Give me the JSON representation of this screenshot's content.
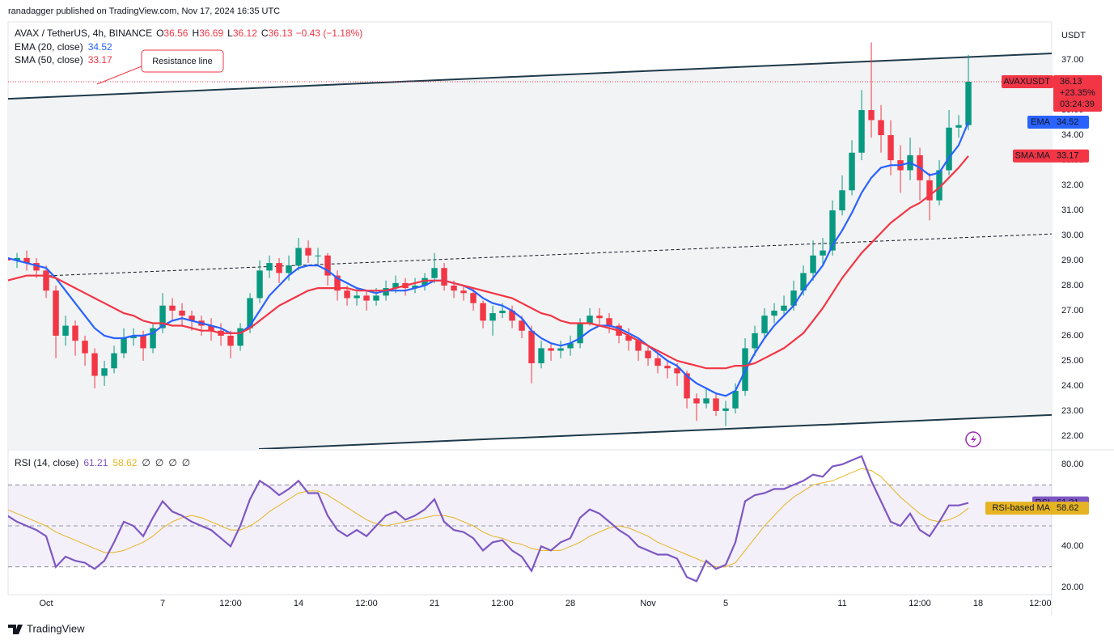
{
  "header": {
    "published": "ranadagger published on TradingView.com, Nov 17, 2024 16:35 UTC",
    "footer": "TradingView"
  },
  "chart_data": {
    "type": "candlestick",
    "title": "AVAX / TetherUS, 4h, BINANCE",
    "currency": "USDT",
    "up_color": "#089981",
    "down_color": "#f23645",
    "legend_ohlc": [
      {
        "label": "O",
        "value": 36.56
      },
      {
        "label": "H",
        "value": 36.69
      },
      {
        "label": "L",
        "value": 36.12
      },
      {
        "label": "C",
        "value": 36.13
      }
    ],
    "change": "−0.43 (−1.18%)",
    "price_tag": "AVAXUSDT",
    "change_pct": "+23.35%",
    "countdown": "03:24:39",
    "xlim": [
      -1.96,
      51.79
    ],
    "xticks": [
      {
        "value": 0,
        "label": "Oct"
      },
      {
        "value": 6,
        "label": "7"
      },
      {
        "value": 9.5,
        "label": "12:00"
      },
      {
        "value": 13,
        "label": "14"
      },
      {
        "value": 16.5,
        "label": "12:00"
      },
      {
        "value": 20,
        "label": "21"
      },
      {
        "value": 23.5,
        "label": "12:00"
      },
      {
        "value": 27,
        "label": "28"
      },
      {
        "value": 31,
        "label": "Nov"
      },
      {
        "value": 35,
        "label": "5"
      },
      {
        "value": 41,
        "label": "11"
      },
      {
        "value": 45,
        "label": "12:00"
      },
      {
        "value": 48,
        "label": "18"
      },
      {
        "value": 51.2,
        "label": "12:00"
      }
    ],
    "ylim": [
      21.48,
      38.52
    ],
    "yticks": [
      {
        "value": 22,
        "label": "22.00"
      },
      {
        "value": 23,
        "label": "23.00"
      },
      {
        "value": 24,
        "label": "24.00"
      },
      {
        "value": 25,
        "label": "25.00"
      },
      {
        "value": 26,
        "label": "26.00"
      },
      {
        "value": 27,
        "label": "27.00"
      },
      {
        "value": 28,
        "label": "28.00"
      },
      {
        "value": 29,
        "label": "29.00"
      },
      {
        "value": 30,
        "label": "30.00"
      },
      {
        "value": 31,
        "label": "31.00"
      },
      {
        "value": 32,
        "label": "32.00"
      },
      {
        "value": 33,
        "label": "33.00"
      },
      {
        "value": 34,
        "label": "34.00"
      },
      {
        "value": 35,
        "label": "35.00"
      },
      {
        "value": 36,
        "label": "36.00"
      },
      {
        "value": 37,
        "label": "37.00"
      }
    ],
    "x": [
      -2,
      -1.5,
      -1,
      -0.5,
      0,
      0.5,
      1,
      1.5,
      2,
      2.5,
      3,
      3.5,
      4,
      4.5,
      5,
      5.5,
      6,
      6.5,
      7,
      7.5,
      8,
      8.5,
      9,
      9.5,
      10,
      10.5,
      11,
      11.5,
      12,
      12.5,
      13,
      13.5,
      14,
      14.5,
      15,
      15.5,
      16,
      16.5,
      17,
      17.5,
      18,
      18.5,
      19,
      19.5,
      20,
      20.5,
      21,
      21.5,
      22,
      22.5,
      23,
      23.5,
      24,
      24.5,
      25,
      25.5,
      26,
      26.5,
      27,
      27.5,
      28,
      28.5,
      29,
      29.5,
      30,
      30.5,
      31,
      31.5,
      32,
      32.5,
      33,
      33.5,
      34,
      34.5,
      35,
      35.5,
      36,
      36.5,
      37,
      37.5,
      38,
      38.5,
      39,
      39.5,
      40,
      40.5,
      41,
      41.5,
      42,
      42.5,
      43,
      43.5,
      44,
      44.5,
      45,
      45.5,
      46,
      46.5,
      47,
      47.5
    ],
    "open": [
      29.1,
      29.0,
      29.1,
      28.9,
      28.6,
      27.8,
      26.0,
      26.4,
      25.8,
      25.3,
      24.4,
      24.7,
      25.3,
      25.9,
      26.0,
      25.5,
      26.3,
      27.2,
      27.0,
      26.8,
      26.6,
      26.4,
      26.2,
      26.0,
      25.6,
      26.3,
      27.5,
      28.6,
      28.9,
      28.5,
      28.8,
      29.5,
      29.2,
      29.2,
      28.4,
      27.8,
      27.5,
      27.6,
      27.4,
      27.6,
      27.9,
      28.1,
      27.9,
      28.0,
      28.3,
      28.7,
      28.0,
      27.8,
      27.7,
      27.3,
      26.6,
      26.9,
      27.0,
      26.6,
      26.2,
      24.9,
      25.5,
      25.4,
      25.5,
      25.7,
      26.5,
      26.8,
      26.7,
      26.4,
      26.0,
      25.8,
      25.4,
      25.1,
      24.8,
      24.7,
      24.5,
      23.5,
      23.3,
      23.5,
      23.0,
      23.1,
      23.8,
      25.5,
      26.1,
      26.8,
      27.0,
      27.2,
      27.8,
      28.5,
      29.2,
      29.4,
      31.0,
      31.8,
      33.3,
      35.0,
      34.6,
      34.0,
      33.0,
      32.6,
      33.2,
      32.2,
      31.4,
      32.6,
      34.3,
      34.4
    ],
    "high": [
      29.4,
      29.3,
      29.4,
      29.1,
      28.8,
      28.0,
      26.8,
      26.6,
      26.0,
      25.5,
      25.0,
      25.6,
      26.3,
      26.3,
      26.2,
      26.5,
      27.7,
      27.5,
      27.3,
      27.0,
      26.8,
      26.7,
      26.5,
      26.2,
      26.5,
      27.7,
      29.0,
      29.2,
      29.1,
      29.2,
      29.9,
      29.8,
      29.5,
      29.3,
      28.6,
      28.0,
      27.9,
      27.8,
      27.9,
      28.2,
      28.4,
      28.3,
      28.3,
      28.5,
      29.3,
      28.9,
      28.2,
      28.0,
      27.9,
      27.4,
      27.2,
      27.3,
      27.2,
      26.8,
      26.4,
      25.8,
      25.7,
      25.8,
      26.0,
      26.7,
      27.1,
      27.1,
      26.9,
      26.5,
      26.3,
      25.9,
      25.6,
      25.3,
      25.0,
      24.9,
      24.6,
      23.7,
      23.9,
      23.7,
      23.4,
      24.1,
      25.9,
      26.4,
      27.1,
      27.3,
      27.6,
      28.2,
      28.8,
      29.8,
      29.9,
      31.4,
      32.4,
      33.8,
      35.8,
      37.7,
      35.2,
      34.6,
      33.6,
      33.9,
      33.5,
      32.5,
      33.0,
      35.0,
      34.8,
      37.2
    ],
    "low": [
      28.8,
      28.7,
      28.6,
      28.3,
      27.5,
      25.1,
      25.6,
      25.2,
      24.8,
      23.9,
      24.0,
      24.5,
      25.1,
      25.6,
      25.0,
      25.3,
      26.1,
      26.6,
      26.4,
      26.2,
      26.0,
      25.8,
      25.6,
      25.1,
      25.4,
      26.1,
      27.3,
      28.3,
      28.1,
      28.2,
      28.6,
      28.9,
      28.8,
      28.0,
      27.4,
      27.2,
      27.2,
      27.0,
      27.2,
      27.4,
      27.7,
      27.6,
      27.7,
      27.8,
      28.1,
      27.8,
      27.5,
      27.4,
      27.0,
      26.3,
      26.0,
      26.7,
      26.3,
      25.9,
      24.1,
      24.7,
      25.0,
      25.1,
      25.2,
      25.5,
      26.4,
      26.4,
      26.1,
      25.7,
      25.4,
      25.0,
      24.8,
      24.5,
      24.3,
      24.0,
      23.1,
      22.6,
      23.1,
      22.8,
      22.4,
      22.9,
      23.6,
      25.2,
      25.9,
      26.5,
      26.8,
      27.0,
      27.6,
      28.2,
      28.8,
      29.2,
      30.8,
      31.6,
      33.0,
      33.9,
      33.3,
      32.4,
      31.7,
      32.2,
      31.4,
      30.6,
      31.2,
      32.4,
      33.9,
      34.2
    ],
    "close": [
      29.0,
      29.1,
      28.9,
      28.6,
      27.8,
      26.0,
      26.4,
      25.8,
      25.3,
      24.4,
      24.7,
      25.3,
      25.9,
      26.0,
      25.5,
      26.3,
      27.2,
      27.0,
      26.8,
      26.6,
      26.4,
      26.2,
      26.0,
      25.6,
      26.3,
      27.5,
      28.6,
      28.9,
      28.5,
      28.8,
      29.5,
      29.2,
      29.2,
      28.4,
      27.8,
      27.5,
      27.6,
      27.4,
      27.6,
      27.9,
      28.1,
      27.9,
      28.0,
      28.3,
      28.7,
      28.0,
      27.8,
      27.7,
      27.3,
      26.6,
      26.9,
      27.0,
      26.6,
      26.2,
      24.9,
      25.5,
      25.4,
      25.5,
      25.7,
      26.5,
      26.8,
      26.7,
      26.4,
      26.0,
      25.8,
      25.4,
      25.1,
      24.8,
      24.7,
      24.5,
      23.5,
      23.3,
      23.5,
      23.0,
      23.1,
      23.8,
      25.5,
      26.1,
      26.8,
      27.0,
      27.2,
      27.8,
      28.5,
      29.2,
      29.4,
      31.0,
      31.8,
      33.3,
      35.0,
      34.6,
      34.0,
      33.0,
      32.6,
      33.2,
      32.2,
      31.4,
      32.6,
      34.3,
      34.4,
      36.13
    ],
    "overlays": [
      {
        "name": "EMA (20, close)",
        "tag": "EMA",
        "color": "#2962ff",
        "values": [
          29.1,
          29.0,
          28.9,
          28.8,
          28.7,
          28.3,
          27.8,
          27.3,
          26.8,
          26.3,
          26.0,
          25.9,
          25.9,
          26.0,
          26.0,
          26.1,
          26.4,
          26.6,
          26.7,
          26.6,
          26.5,
          26.4,
          26.3,
          26.1,
          26.1,
          26.4,
          27.0,
          27.6,
          28.0,
          28.4,
          28.7,
          28.8,
          28.8,
          28.6,
          28.3,
          28.1,
          27.9,
          27.8,
          27.7,
          27.8,
          27.8,
          27.8,
          27.9,
          28.0,
          28.2,
          28.2,
          28.1,
          28.0,
          27.8,
          27.5,
          27.3,
          27.2,
          27.0,
          26.7,
          26.2,
          25.9,
          25.7,
          25.6,
          25.7,
          25.9,
          26.2,
          26.4,
          26.4,
          26.3,
          26.1,
          25.9,
          25.6,
          25.3,
          25.0,
          24.8,
          24.4,
          24.1,
          23.9,
          23.7,
          23.6,
          23.8,
          24.6,
          25.3,
          25.9,
          26.4,
          26.8,
          27.2,
          27.8,
          28.3,
          28.8,
          29.6,
          30.2,
          30.9,
          31.7,
          32.3,
          32.7,
          32.8,
          32.8,
          32.9,
          32.7,
          32.4,
          32.5,
          33.1,
          33.6,
          34.52
        ]
      },
      {
        "name": "SMA (50, close)",
        "tag": "SMA:MA",
        "color": "#f23645",
        "values": [
          28.2,
          28.3,
          28.4,
          28.4,
          28.4,
          28.3,
          28.1,
          27.9,
          27.7,
          27.5,
          27.3,
          27.1,
          26.9,
          26.8,
          26.6,
          26.5,
          26.5,
          26.4,
          26.4,
          26.3,
          26.2,
          26.2,
          26.1,
          26.1,
          26.1,
          26.3,
          26.6,
          26.9,
          27.2,
          27.4,
          27.6,
          27.8,
          27.9,
          27.9,
          27.9,
          27.9,
          27.8,
          27.8,
          27.8,
          27.8,
          27.9,
          28.0,
          28.1,
          28.2,
          28.2,
          28.2,
          28.1,
          28.0,
          27.9,
          27.8,
          27.7,
          27.6,
          27.5,
          27.3,
          27.1,
          26.9,
          26.8,
          26.6,
          26.5,
          26.5,
          26.5,
          26.4,
          26.3,
          26.2,
          26.0,
          25.8,
          25.6,
          25.4,
          25.2,
          25.0,
          24.9,
          24.8,
          24.7,
          24.7,
          24.7,
          24.8,
          24.8,
          24.9,
          25.1,
          25.3,
          25.5,
          25.8,
          26.1,
          26.6,
          27.1,
          27.7,
          28.3,
          28.8,
          29.3,
          29.7,
          30.1,
          30.5,
          30.8,
          31.1,
          31.3,
          31.6,
          31.9,
          32.3,
          32.7,
          33.17
        ]
      }
    ],
    "trendlines": [
      {
        "label": "Resistance line",
        "color": "#1e3a4a",
        "style": "solid",
        "x": [
          -1.96,
          51.79
        ],
        "y": [
          35.45,
          37.26
        ]
      },
      {
        "color": "#1e3a4a",
        "style": "solid",
        "x": [
          10.96,
          51.79
        ],
        "y": [
          21.48,
          22.84
        ]
      },
      {
        "color": "#131722",
        "style": "dashed",
        "x": [
          0.12,
          51.79
        ],
        "y": [
          28.39,
          30.06
        ]
      }
    ],
    "rsi": {
      "name": "RSI (14, close)",
      "tag": "RSI",
      "color": "#7e57c2",
      "values": [
        55,
        52,
        50,
        48,
        45,
        30,
        35,
        33,
        32,
        29,
        33,
        42,
        52,
        50,
        45,
        54,
        62,
        57,
        55,
        52,
        50,
        48,
        44,
        40,
        50,
        63,
        72,
        69,
        65,
        68,
        72,
        66,
        66,
        55,
        48,
        45,
        48,
        45,
        50,
        55,
        57,
        53,
        55,
        58,
        63,
        52,
        48,
        47,
        44,
        38,
        42,
        43,
        38,
        35,
        28,
        40,
        38,
        42,
        44,
        54,
        58,
        56,
        52,
        48,
        45,
        40,
        38,
        36,
        36,
        34,
        25,
        23,
        33,
        29,
        31,
        42,
        62,
        65,
        66,
        68,
        68,
        70,
        72,
        75,
        74,
        79,
        80,
        82,
        84,
        72,
        62,
        52,
        50,
        56,
        48,
        45,
        52,
        60,
        60,
        61.21
      ],
      "ma": {
        "tag": "RSI-based MA",
        "color": "#e6b422",
        "values": [
          58,
          56,
          54,
          52,
          50,
          47,
          45,
          43,
          41,
          39,
          37,
          37,
          38,
          40,
          42,
          45,
          49,
          52,
          54,
          55,
          54,
          52,
          50,
          48,
          48,
          50,
          53,
          57,
          60,
          63,
          66,
          67,
          67,
          65,
          62,
          59,
          56,
          53,
          51,
          50,
          51,
          52,
          53,
          54,
          55,
          55,
          54,
          52,
          50,
          47,
          45,
          44,
          42,
          41,
          39,
          38,
          38,
          38,
          40,
          42,
          45,
          47,
          49,
          50,
          49,
          47,
          45,
          42,
          40,
          38,
          36,
          34,
          32,
          30,
          30,
          32,
          38,
          44,
          50,
          55,
          60,
          64,
          67,
          70,
          71,
          72,
          74,
          76,
          78,
          77,
          74,
          69,
          64,
          60,
          56,
          53,
          52,
          53,
          55,
          58.62
        ]
      },
      "extra": [
        "∅",
        "∅",
        "∅",
        "∅"
      ],
      "bands": [
        30,
        50,
        70
      ],
      "ylim": [
        16.45,
        86.71
      ],
      "yticks": [
        {
          "value": 20,
          "label": "20.00"
        },
        {
          "value": 40,
          "label": "40.00"
        },
        {
          "value": 80,
          "label": "80.00"
        }
      ]
    }
  }
}
